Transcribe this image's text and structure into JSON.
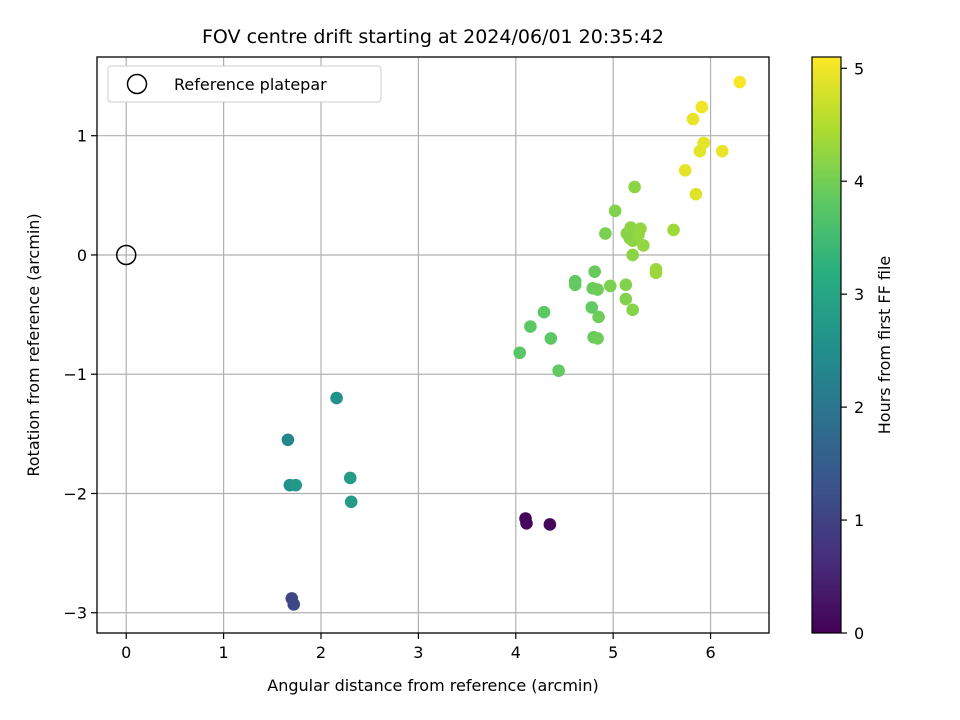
{
  "chart_data": {
    "type": "scatter",
    "title": "FOV centre drift starting at 2024/06/01 20:35:42",
    "xlabel": "Angular distance from reference (arcmin)",
    "ylabel": "Rotation from reference (arcmin)",
    "xlim": [
      -0.3,
      6.6
    ],
    "ylim": [
      -3.17,
      1.66
    ],
    "xticks": [
      "0",
      "1",
      "2",
      "3",
      "4",
      "5",
      "6"
    ],
    "yticks": [
      "−3",
      "−2",
      "−1",
      "0",
      "1"
    ],
    "grid": true,
    "legend": {
      "placement": "top-left",
      "entries": [
        {
          "label": "Reference platepar",
          "marker": "hollow-circle"
        }
      ]
    },
    "reference_point": {
      "x": 0,
      "y": 0
    },
    "colorbar": {
      "label": "Hours from first FF file",
      "colormap": "viridis",
      "range": [
        0,
        5.1
      ],
      "ticks": [
        "0",
        "1",
        "2",
        "3",
        "4",
        "5"
      ]
    },
    "points": [
      {
        "x": 4.1,
        "y": -2.21,
        "c": 0.05
      },
      {
        "x": 4.11,
        "y": -2.25,
        "c": 0.08
      },
      {
        "x": 4.35,
        "y": -2.26,
        "c": 0.12
      },
      {
        "x": 1.7,
        "y": -2.88,
        "c": 1.05
      },
      {
        "x": 1.72,
        "y": -2.93,
        "c": 1.1
      },
      {
        "x": 1.66,
        "y": -1.55,
        "c": 2.35
      },
      {
        "x": 1.68,
        "y": -1.93,
        "c": 2.6
      },
      {
        "x": 1.74,
        "y": -1.93,
        "c": 2.7
      },
      {
        "x": 2.16,
        "y": -1.2,
        "c": 2.55
      },
      {
        "x": 2.3,
        "y": -1.87,
        "c": 2.8
      },
      {
        "x": 2.31,
        "y": -2.07,
        "c": 2.8
      },
      {
        "x": 4.04,
        "y": -0.82,
        "c": 3.75
      },
      {
        "x": 4.15,
        "y": -0.6,
        "c": 3.8
      },
      {
        "x": 4.29,
        "y": -0.48,
        "c": 3.8
      },
      {
        "x": 4.36,
        "y": -0.7,
        "c": 3.8
      },
      {
        "x": 4.44,
        "y": -0.97,
        "c": 3.85
      },
      {
        "x": 4.61,
        "y": -0.22,
        "c": 3.8
      },
      {
        "x": 4.61,
        "y": -0.25,
        "c": 3.85
      },
      {
        "x": 4.78,
        "y": -0.44,
        "c": 3.85
      },
      {
        "x": 4.79,
        "y": -0.28,
        "c": 3.9
      },
      {
        "x": 4.81,
        "y": -0.14,
        "c": 3.9
      },
      {
        "x": 4.8,
        "y": -0.69,
        "c": 3.9
      },
      {
        "x": 4.84,
        "y": -0.7,
        "c": 3.95
      },
      {
        "x": 4.84,
        "y": -0.29,
        "c": 3.95
      },
      {
        "x": 4.85,
        "y": -0.52,
        "c": 3.95
      },
      {
        "x": 4.92,
        "y": 0.18,
        "c": 4.05
      },
      {
        "x": 4.97,
        "y": -0.26,
        "c": 4.05
      },
      {
        "x": 5.02,
        "y": 0.37,
        "c": 4.1
      },
      {
        "x": 5.13,
        "y": -0.25,
        "c": 4.1
      },
      {
        "x": 5.13,
        "y": -0.37,
        "c": 4.1
      },
      {
        "x": 5.14,
        "y": 0.18,
        "c": 4.15
      },
      {
        "x": 5.17,
        "y": 0.14,
        "c": 4.15
      },
      {
        "x": 5.18,
        "y": 0.23,
        "c": 4.2
      },
      {
        "x": 5.2,
        "y": 0.12,
        "c": 4.2
      },
      {
        "x": 5.2,
        "y": 0.0,
        "c": 4.2
      },
      {
        "x": 5.2,
        "y": -0.46,
        "c": 4.15
      },
      {
        "x": 5.22,
        "y": 0.57,
        "c": 4.2
      },
      {
        "x": 5.26,
        "y": 0.17,
        "c": 4.25
      },
      {
        "x": 5.28,
        "y": 0.22,
        "c": 4.25
      },
      {
        "x": 5.31,
        "y": 0.08,
        "c": 4.25
      },
      {
        "x": 5.44,
        "y": -0.12,
        "c": 4.3
      },
      {
        "x": 5.44,
        "y": -0.15,
        "c": 4.3
      },
      {
        "x": 5.62,
        "y": 0.21,
        "c": 4.35
      },
      {
        "x": 5.74,
        "y": 0.71,
        "c": 4.9
      },
      {
        "x": 5.82,
        "y": 1.14,
        "c": 4.95
      },
      {
        "x": 5.85,
        "y": 0.51,
        "c": 4.85
      },
      {
        "x": 5.89,
        "y": 0.87,
        "c": 4.9
      },
      {
        "x": 5.91,
        "y": 1.24,
        "c": 5.0
      },
      {
        "x": 5.93,
        "y": 0.94,
        "c": 4.9
      },
      {
        "x": 6.12,
        "y": 0.87,
        "c": 4.95
      },
      {
        "x": 6.3,
        "y": 1.45,
        "c": 5.05
      }
    ]
  }
}
